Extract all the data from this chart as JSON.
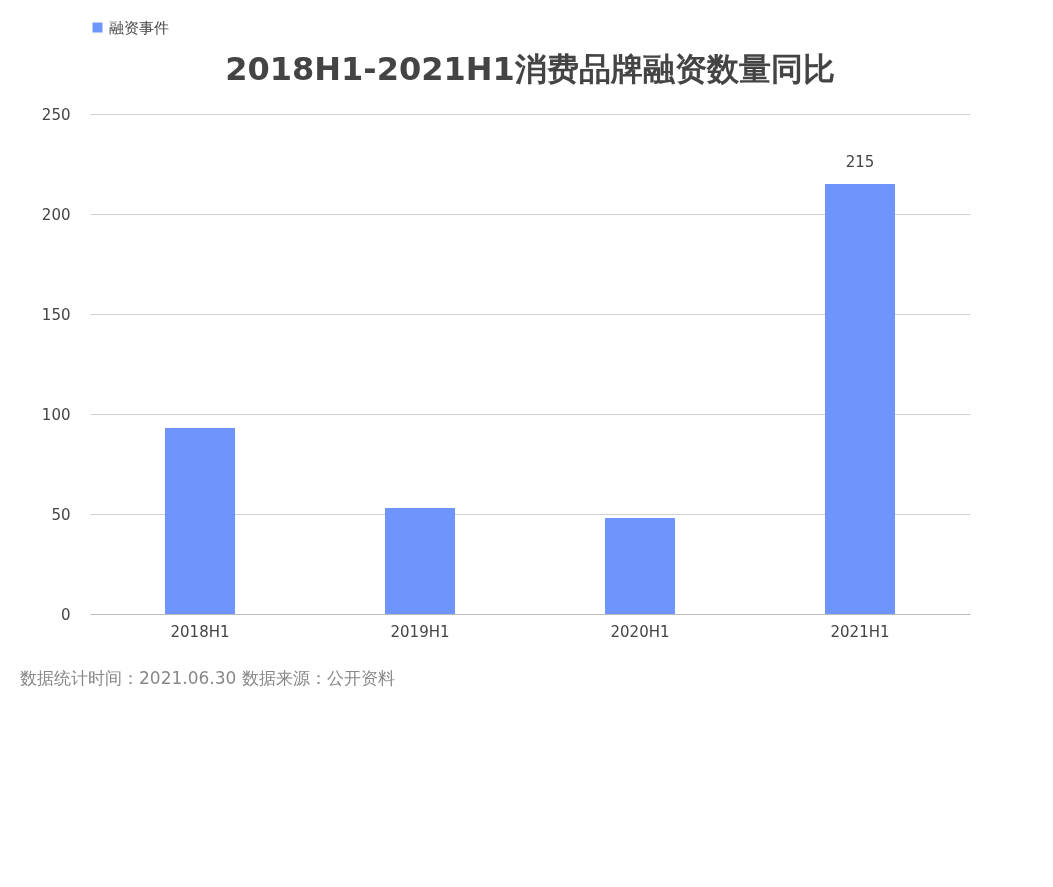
{
  "chart_data": {
    "type": "bar",
    "title": "2018H1-2021H1消费品牌融资数量同比",
    "categories": [
      "2018H1",
      "2019H1",
      "2020H1",
      "2021H1"
    ],
    "series": [
      {
        "name": "融资事件",
        "color": "#6e95fb",
        "values": [
          93,
          53,
          48,
          215
        ],
        "value_labels": [
          null,
          null,
          null,
          "215"
        ]
      }
    ],
    "ylim": [
      0,
      250
    ],
    "yticks": [
      0,
      50,
      100,
      150,
      200,
      250
    ],
    "grid": "y",
    "legend": "top",
    "annotations": [
      "数据统计时间：2021.06.30  数据来源：公开资料"
    ]
  }
}
